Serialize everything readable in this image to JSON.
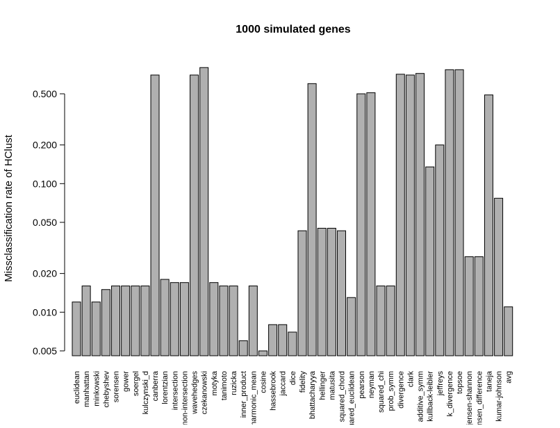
{
  "chart_data": {
    "type": "bar",
    "title": "1000 simulated genes",
    "xlabel": "",
    "ylabel": "Missclassification rate of HClust",
    "yscale": "log",
    "ylim": [
      0.0045,
      0.9
    ],
    "yticks": [
      0.005,
      0.01,
      0.02,
      0.05,
      0.1,
      0.2,
      0.5
    ],
    "ytick_labels": [
      "0.005",
      "0.010",
      "0.020",
      "0.050",
      "0.100",
      "0.200",
      "0.500"
    ],
    "bar_color": "#b0b0b0",
    "grid": false,
    "categories": [
      "euclidean",
      "manhattan",
      "minkowski",
      "chebyshev",
      "sorensen",
      "gower",
      "soergel",
      "kulczynski_d",
      "canberra",
      "lorentzian",
      "intersection",
      "non-intersection",
      "wavehedges",
      "czekanowski",
      "motyka",
      "tanimoto",
      "ruzicka",
      "inner_product",
      "harmonic_mean",
      "cosine",
      "hassebrook",
      "jaccard",
      "dice",
      "fidelity",
      "bhattacharyya",
      "hellinger",
      "matusita",
      "squared_chord",
      "squared_euclidean",
      "pearson",
      "neyman",
      "squared_chi",
      "prob_symm",
      "divergence",
      "clark",
      "additive_symm",
      "kullback-leibler",
      "jeffreys",
      "k_divergence",
      "topsoe",
      "jensen-shannon",
      "jensen_difference",
      "taneja",
      "kumar-johnson",
      "avg"
    ],
    "values": [
      0.012,
      0.016,
      0.012,
      0.015,
      0.016,
      0.016,
      0.016,
      0.016,
      0.7,
      0.018,
      0.017,
      0.017,
      0.7,
      0.8,
      0.017,
      0.016,
      0.016,
      0.006,
      0.016,
      0.005,
      0.008,
      0.008,
      0.007,
      0.043,
      0.6,
      0.045,
      0.045,
      0.043,
      0.013,
      0.5,
      0.51,
      0.016,
      0.016,
      0.71,
      0.7,
      0.72,
      0.135,
      0.2,
      0.77,
      0.77,
      0.027,
      0.027,
      0.49,
      0.077,
      0.011
    ]
  }
}
